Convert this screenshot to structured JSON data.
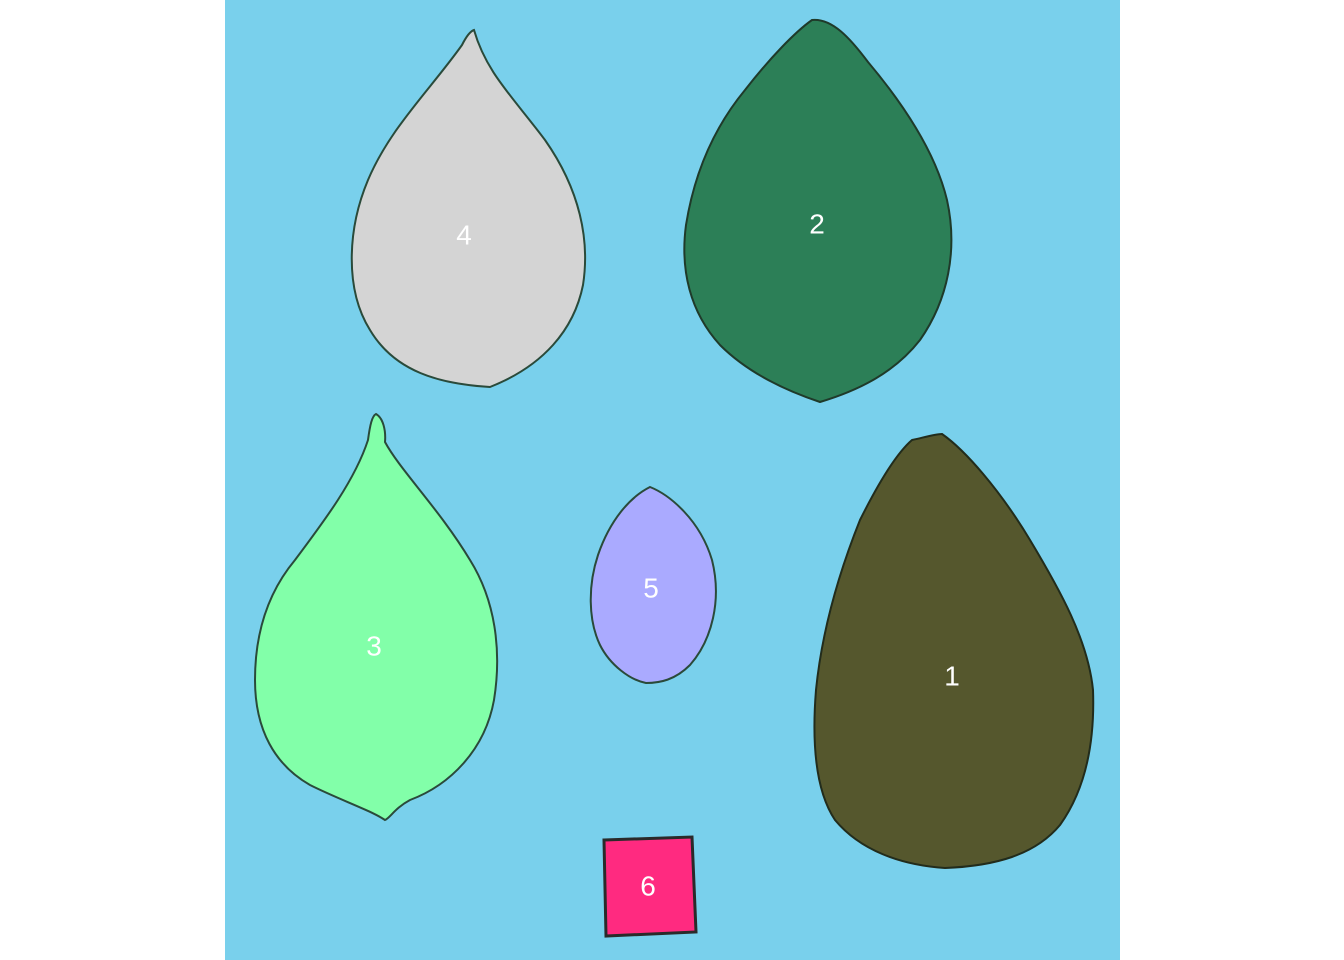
{
  "background": {
    "color": "#79d0ec"
  },
  "label_color": "#ffffff",
  "leaves": [
    {
      "id": "1",
      "label": "1",
      "fill": "#55572d"
    },
    {
      "id": "2",
      "label": "2",
      "fill": "#2c7f57"
    },
    {
      "id": "3",
      "label": "3",
      "fill": "#82ffa9"
    },
    {
      "id": "4",
      "label": "4",
      "fill": "#d4d4d4"
    },
    {
      "id": "5",
      "label": "5",
      "fill": "#aaaaff"
    }
  ],
  "square": {
    "id": "6",
    "label": "6",
    "fill": "#ff2a80"
  }
}
